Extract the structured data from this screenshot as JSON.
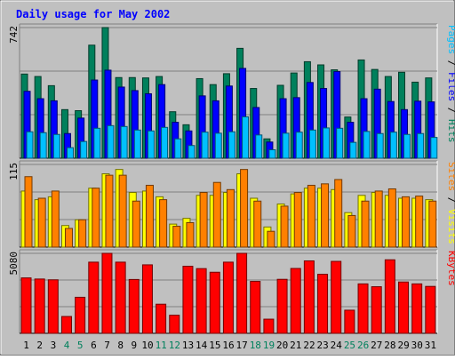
{
  "chart_data": {
    "type": "bar",
    "title": "Daily usage for May 2002",
    "categories": [
      "1",
      "2",
      "3",
      "4",
      "5",
      "6",
      "7",
      "8",
      "9",
      "10",
      "11",
      "12",
      "13",
      "14",
      "15",
      "16",
      "17",
      "18",
      "19",
      "20",
      "21",
      "22",
      "23",
      "24",
      "25",
      "26",
      "27",
      "28",
      "29",
      "30",
      "31"
    ],
    "weekend_days": [
      "4",
      "5",
      "11",
      "12",
      "18",
      "19",
      "25",
      "26"
    ],
    "panels": [
      {
        "id": "hits",
        "ylim": [
          0,
          742
        ],
        "ytick_label": "742",
        "right_label": [
          "Pages",
          "Files",
          "Hits"
        ],
        "series": [
          {
            "name": "Hits",
            "color": "#00805c",
            "values": [
              478,
              464,
              412,
              276,
              270,
              642,
              742,
              458,
              458,
              456,
              464,
              264,
              190,
              452,
              418,
              480,
              624,
              396,
              110,
              414,
              484,
              548,
              530,
              502,
              234,
              558,
              504,
              464,
              488,
              432,
              456
            ]
          },
          {
            "name": "Files",
            "color": "#0000ff",
            "values": [
              380,
              338,
              326,
              140,
              228,
              444,
              500,
              404,
              384,
              366,
              418,
              204,
              155,
              354,
              326,
              410,
              510,
              288,
              92,
              338,
              344,
              430,
              396,
              492,
              204,
              338,
              392,
              322,
              276,
              324,
              320
            ]
          },
          {
            "name": "Pages",
            "color": "#00c0ff",
            "values": [
              150,
              145,
              135,
              60,
              95,
              170,
              185,
              180,
              160,
              155,
              175,
              110,
              72,
              148,
              142,
              150,
              235,
              132,
              48,
              142,
              148,
              160,
              172,
              170,
              90,
              152,
              140,
              148,
              135,
              140,
              118
            ]
          }
        ]
      },
      {
        "id": "visits",
        "ylim": [
          0,
          115
        ],
        "ytick_label": "115",
        "right_label": [
          "Sites",
          "Visits"
        ],
        "series": [
          {
            "name": "Visits",
            "color": "#ffff00",
            "values": [
              78,
              66,
              70,
              30,
              38,
              82,
              102,
              108,
              76,
              78,
              70,
              32,
              40,
              72,
              72,
              76,
              102,
              68,
              28,
              60,
              74,
              82,
              82,
              80,
              48,
              72,
              76,
              72,
              68,
              68,
              66
            ]
          },
          {
            "name": "Sites",
            "color": "#ff8000",
            "values": [
              98,
              68,
              78,
              26,
              38,
              82,
              100,
              100,
              64,
              86,
              66,
              29,
              34,
              76,
              90,
              80,
              108,
              64,
              22,
              57,
              76,
              86,
              88,
              94,
              44,
              64,
              78,
              81,
              70,
              71,
              64
            ]
          }
        ]
      },
      {
        "id": "kbytes",
        "ylim": [
          0,
          5080
        ],
        "ytick_label": "5080",
        "right_label": [
          "KBytes"
        ],
        "series": [
          {
            "name": "KBytes",
            "color": "#ff0000",
            "values": [
              3520,
              3450,
              3400,
              1070,
              2290,
              4520,
              5080,
              4520,
              3420,
              4350,
              1850,
              1150,
              4260,
              4110,
              3880,
              4520,
              5080,
              3300,
              900,
              3430,
              4120,
              4600,
              3750,
              4570,
              1470,
              3140,
              2960,
              4670,
              3260,
              3140,
              2980
            ]
          }
        ]
      }
    ],
    "axis_line_color": "#000000",
    "background_color": "#c0c0c0",
    "title_color": "#0000ff",
    "weekday_label_color": "#000000",
    "weekend_label_color": "#00805c",
    "label_colors": {
      "Pages": "#00c0ff",
      "Files": "#0000ff",
      "Hits": "#00805c",
      "Sites": "#ff8000",
      "Visits": "#ffff00",
      "KBytes": "#ff0000"
    }
  }
}
